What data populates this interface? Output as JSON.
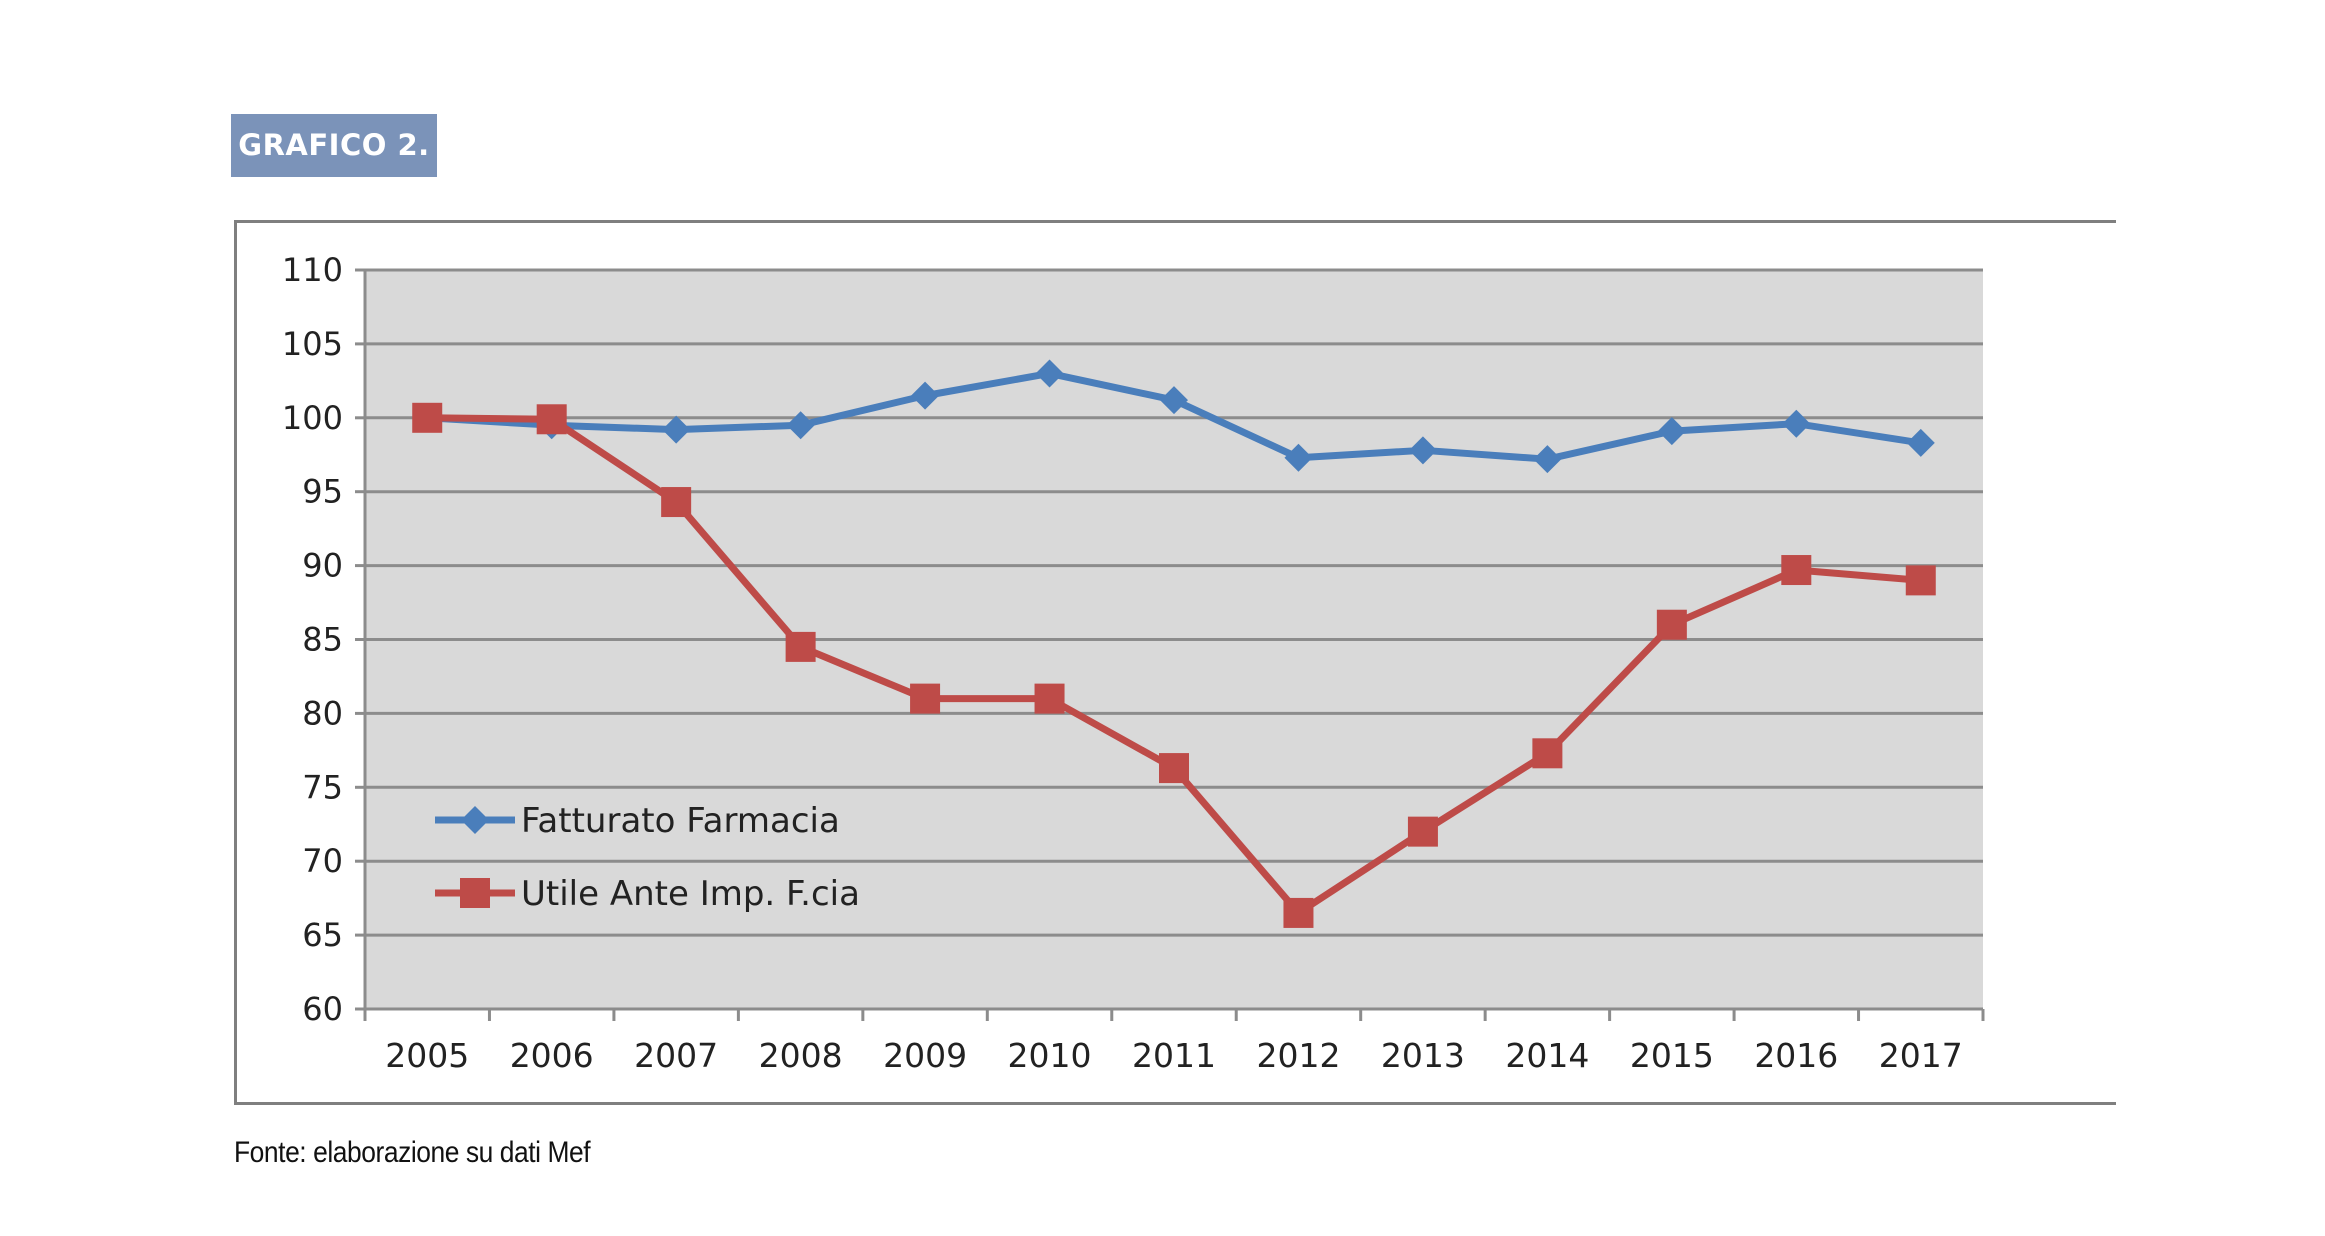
{
  "header": {
    "label": "GRAFICO 2."
  },
  "source": {
    "text": "Fonte: elaborazione su dati Mef"
  },
  "colors": {
    "badge": "#7b93b9",
    "plot_bg": "#d9d9d9",
    "series_blue": "#4a7ebb",
    "series_red": "#be4b48"
  },
  "chart_data": {
    "type": "line",
    "title": "",
    "xlabel": "",
    "ylabel": "",
    "categories": [
      "2005",
      "2006",
      "2007",
      "2008",
      "2009",
      "2010",
      "2011",
      "2012",
      "2013",
      "2014",
      "2015",
      "2016",
      "2017"
    ],
    "ylim": [
      60,
      110
    ],
    "yticks": [
      60,
      65,
      70,
      75,
      80,
      85,
      90,
      95,
      100,
      105,
      110
    ],
    "grid": true,
    "legend_position": "lower-left, inside plot",
    "series": [
      {
        "name": "Fatturato Farmacia",
        "marker": "diamond",
        "color": "#4a7ebb",
        "values": [
          100,
          99.5,
          99.2,
          99.5,
          101.5,
          103,
          101.2,
          97.3,
          97.8,
          97.2,
          99.1,
          99.6,
          98.3
        ]
      },
      {
        "name": "Utile Ante Imp. F.cia",
        "marker": "square",
        "color": "#be4b48",
        "values": [
          100,
          99.9,
          94.3,
          84.5,
          81,
          81,
          76.3,
          66.5,
          72,
          77.3,
          86,
          89.7,
          89
        ]
      }
    ]
  }
}
